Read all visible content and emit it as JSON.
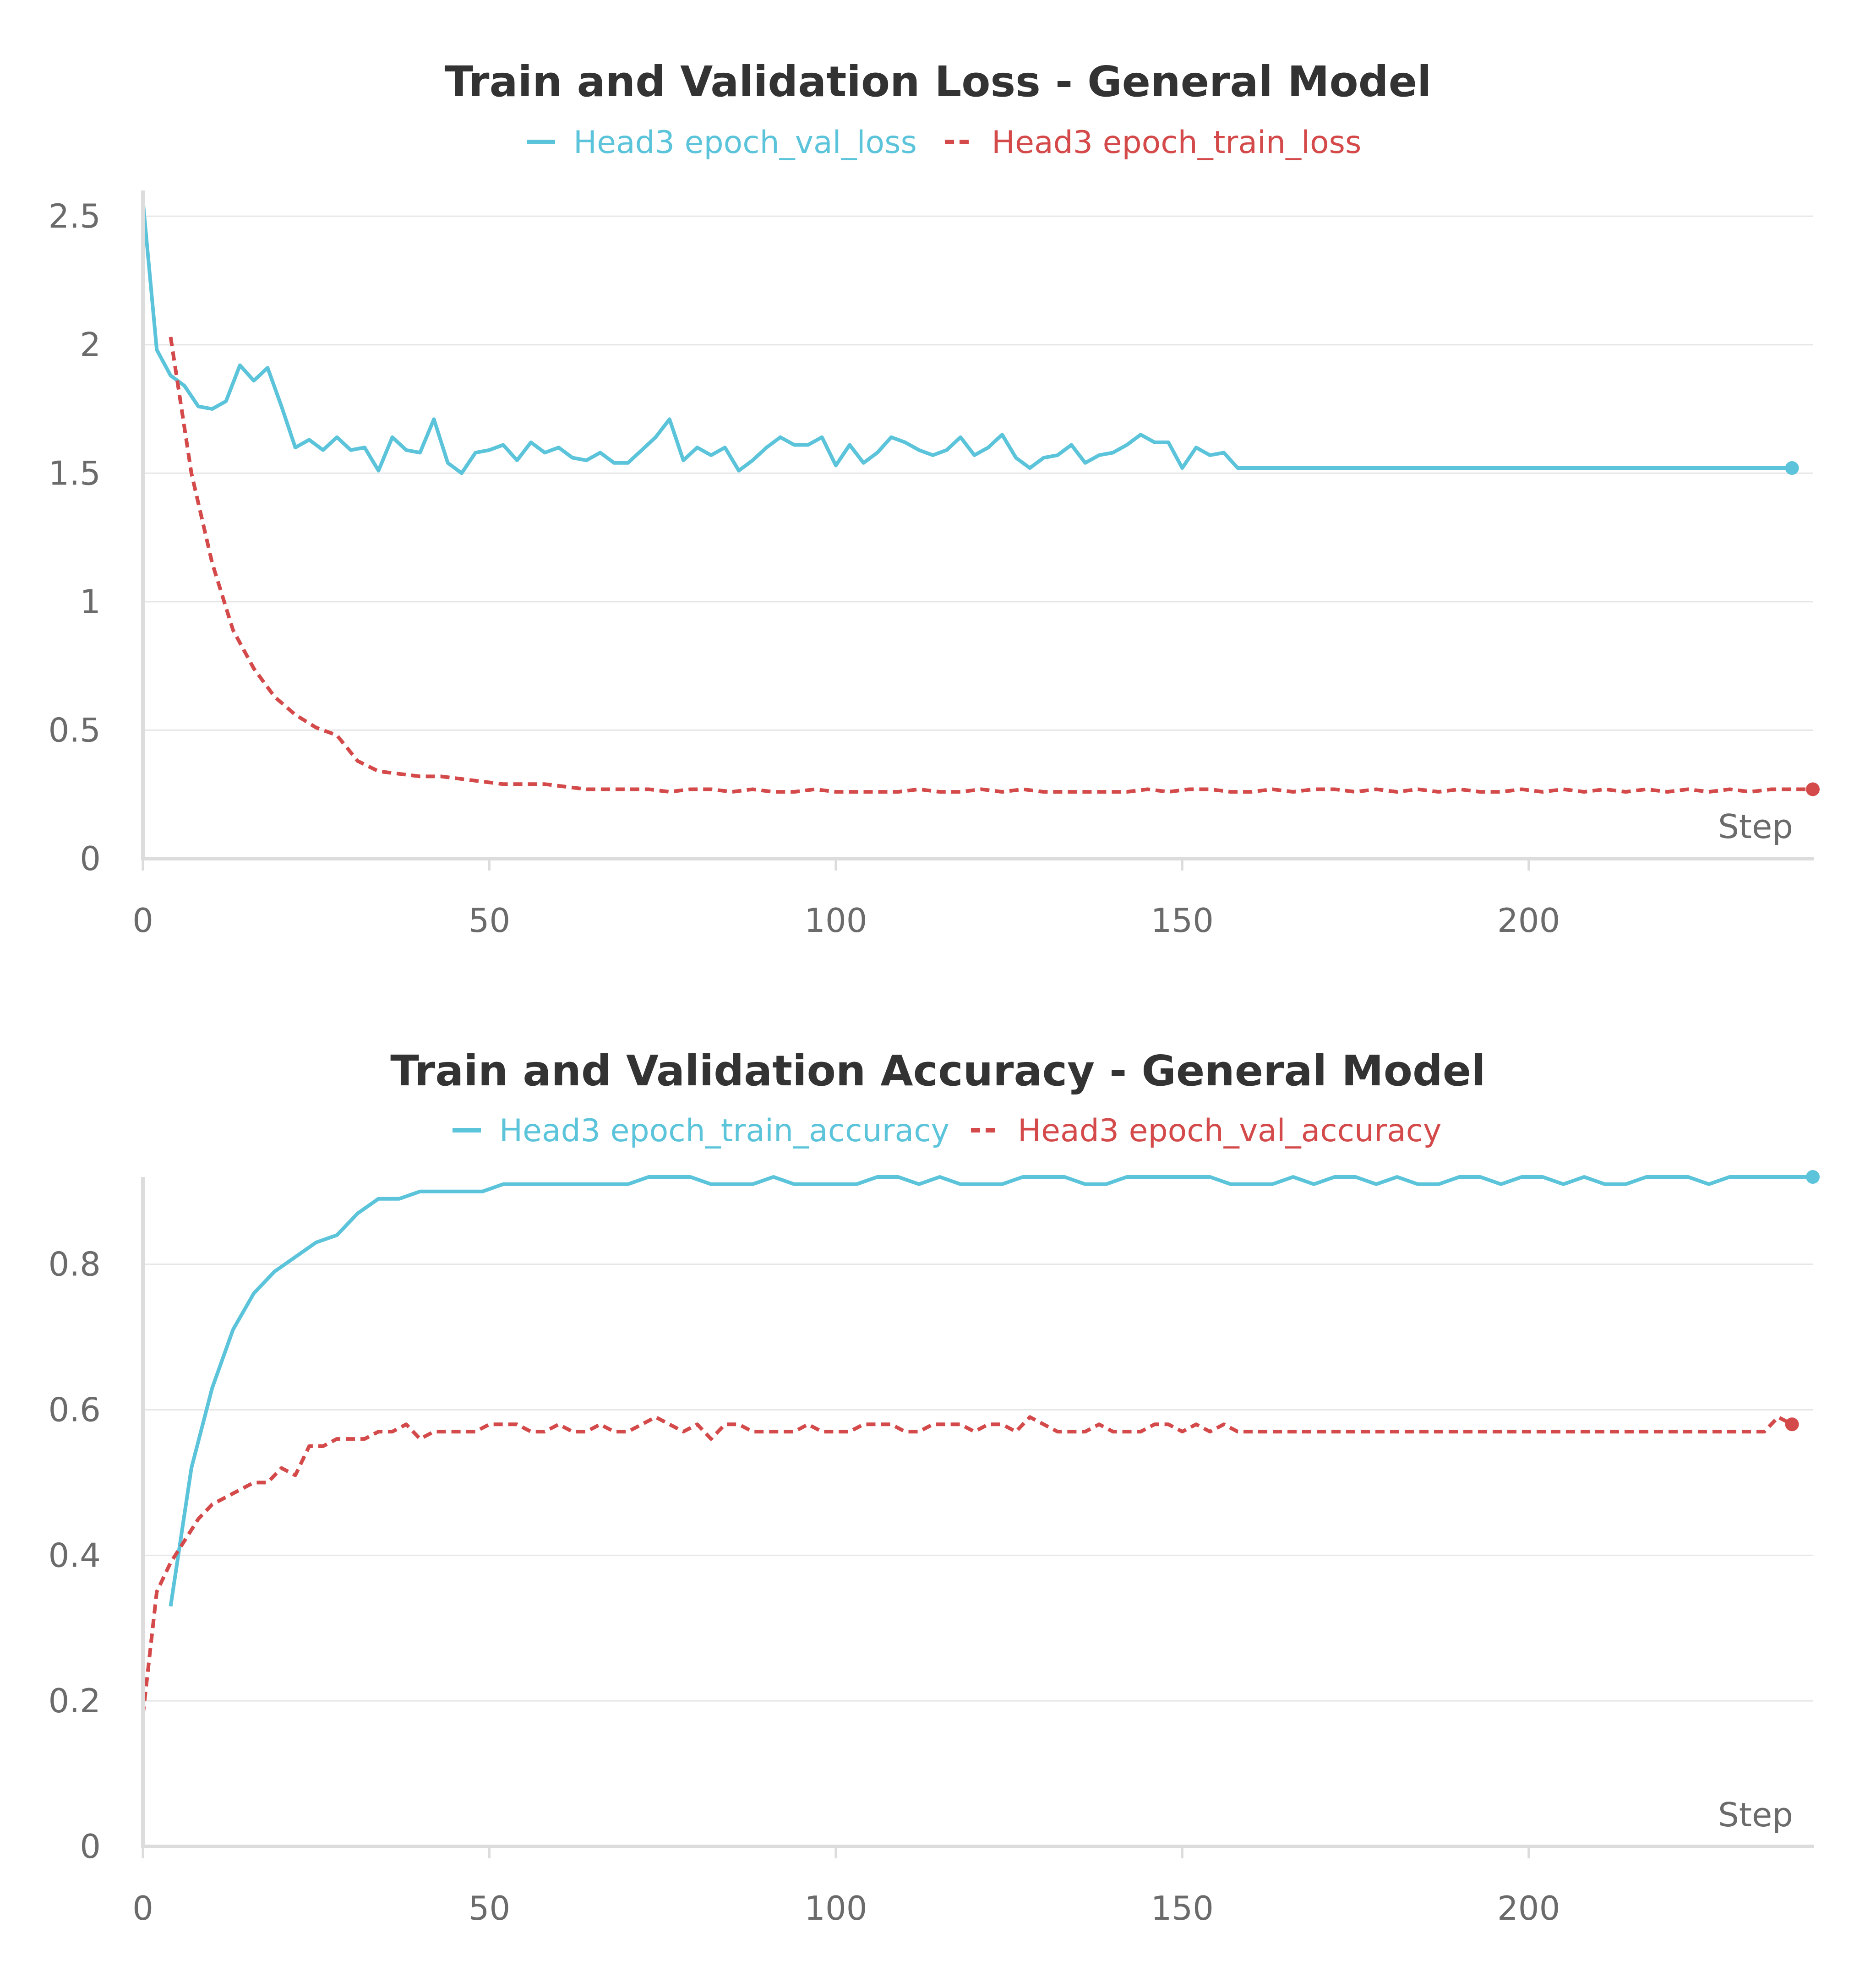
{
  "chart_data": [
    {
      "type": "line",
      "title": "Train and Validation Loss - General Model",
      "xlabel": "Step",
      "ylabel": "",
      "xlim": [
        0,
        241
      ],
      "ylim": [
        0,
        2.6
      ],
      "xticks": [
        0,
        50,
        100,
        150,
        200
      ],
      "xtick_labels": [
        "0",
        "50",
        "100",
        "150",
        "200"
      ],
      "yticks": [
        0,
        0.5,
        1,
        1.5,
        2,
        2.5
      ],
      "ytick_labels": [
        "0",
        "0.5",
        "1",
        "1.5",
        "2",
        "2.5"
      ],
      "grid": true,
      "legend_position": "top-center",
      "series": [
        {
          "name": "Head3 epoch_val_loss",
          "color": "#5bc4da",
          "style": "solid",
          "x": [
            0,
            2,
            4,
            6,
            8,
            10,
            12,
            14,
            16,
            18,
            20,
            22,
            24,
            26,
            28,
            30,
            32,
            34,
            36,
            38,
            40,
            42,
            44,
            46,
            48,
            50,
            52,
            54,
            56,
            58,
            60,
            62,
            64,
            66,
            68,
            70,
            72,
            74,
            76,
            78,
            80,
            82,
            84,
            86,
            88,
            90,
            92,
            94,
            96,
            98,
            100,
            102,
            104,
            106,
            108,
            110,
            112,
            114,
            116,
            118,
            120,
            122,
            124,
            126,
            128,
            130,
            132,
            134,
            136,
            138,
            140,
            142,
            144,
            146,
            148,
            150,
            152,
            154,
            156,
            158,
            160,
            162,
            164,
            166,
            168,
            170,
            172,
            174,
            176,
            178,
            180,
            182,
            184,
            186,
            188,
            190,
            192,
            194,
            196,
            198,
            200,
            202,
            204,
            206,
            208,
            210,
            212,
            214,
            216,
            218,
            220,
            222,
            224,
            226,
            228,
            230,
            232,
            234,
            236,
            238
          ],
          "y": [
            2.56,
            1.98,
            1.88,
            1.84,
            1.76,
            1.75,
            1.78,
            1.92,
            1.86,
            1.91,
            1.76,
            1.6,
            1.63,
            1.59,
            1.64,
            1.59,
            1.6,
            1.51,
            1.64,
            1.59,
            1.58,
            1.71,
            1.54,
            1.5,
            1.58,
            1.59,
            1.61,
            1.55,
            1.62,
            1.58,
            1.6,
            1.56,
            1.55,
            1.58,
            1.54,
            1.54,
            1.59,
            1.64,
            1.71,
            1.55,
            1.6,
            1.57,
            1.6,
            1.51,
            1.55,
            1.6,
            1.64,
            1.61,
            1.61,
            1.64,
            1.53,
            1.61,
            1.54,
            1.58,
            1.64,
            1.62,
            1.59,
            1.57,
            1.59,
            1.64,
            1.57,
            1.6,
            1.65,
            1.56,
            1.52,
            1.56,
            1.57,
            1.61,
            1.54,
            1.57,
            1.58,
            1.61,
            1.65,
            1.62,
            1.62,
            1.52,
            1.6,
            1.57,
            1.58,
            1.52,
            1.52,
            1.52,
            1.52,
            1.52,
            1.52,
            1.52,
            1.52,
            1.52,
            1.52,
            1.52,
            1.52,
            1.52,
            1.52,
            1.52,
            1.52,
            1.52,
            1.52,
            1.52,
            1.52,
            1.52,
            1.52,
            1.52,
            1.52,
            1.52,
            1.52,
            1.52,
            1.52,
            1.52,
            1.52,
            1.52,
            1.52,
            1.52,
            1.52,
            1.52,
            1.52,
            1.52,
            1.52,
            1.52,
            1.52,
            1.52
          ]
        },
        {
          "name": "Head3 epoch_train_loss",
          "color": "#d44a4a",
          "style": "dashed",
          "x": [
            4,
            7,
            10,
            13,
            16,
            19,
            22,
            25,
            28,
            31,
            34,
            37,
            40,
            43,
            46,
            49,
            52,
            55,
            58,
            61,
            64,
            67,
            70,
            73,
            76,
            79,
            82,
            85,
            88,
            91,
            94,
            97,
            100,
            103,
            106,
            109,
            112,
            115,
            118,
            121,
            124,
            127,
            130,
            133,
            136,
            139,
            142,
            145,
            148,
            151,
            154,
            157,
            160,
            163,
            166,
            169,
            172,
            175,
            178,
            181,
            184,
            187,
            190,
            193,
            196,
            199,
            202,
            205,
            208,
            211,
            214,
            217,
            220,
            223,
            226,
            229,
            232,
            235,
            238,
            241
          ],
          "y": [
            2.03,
            1.5,
            1.15,
            0.89,
            0.74,
            0.63,
            0.56,
            0.51,
            0.48,
            0.38,
            0.34,
            0.33,
            0.32,
            0.32,
            0.31,
            0.3,
            0.29,
            0.29,
            0.29,
            0.28,
            0.27,
            0.27,
            0.27,
            0.27,
            0.26,
            0.27,
            0.27,
            0.26,
            0.27,
            0.26,
            0.26,
            0.27,
            0.26,
            0.26,
            0.26,
            0.26,
            0.27,
            0.26,
            0.26,
            0.27,
            0.26,
            0.27,
            0.26,
            0.26,
            0.26,
            0.26,
            0.26,
            0.27,
            0.26,
            0.27,
            0.27,
            0.26,
            0.26,
            0.27,
            0.26,
            0.27,
            0.27,
            0.26,
            0.27,
            0.26,
            0.27,
            0.26,
            0.27,
            0.26,
            0.26,
            0.27,
            0.26,
            0.27,
            0.26,
            0.27,
            0.26,
            0.27,
            0.26,
            0.27,
            0.26,
            0.27,
            0.26,
            0.27,
            0.27,
            0.27
          ]
        }
      ]
    },
    {
      "type": "line",
      "title": "Train and Validation Accuracy - General Model",
      "xlabel": "Step",
      "ylabel": "",
      "xlim": [
        0,
        241
      ],
      "ylim": [
        0,
        0.92
      ],
      "xticks": [
        0,
        50,
        100,
        150,
        200
      ],
      "xtick_labels": [
        "0",
        "50",
        "100",
        "150",
        "200"
      ],
      "yticks": [
        0,
        0.2,
        0.4,
        0.6,
        0.8
      ],
      "ytick_labels": [
        "0",
        "0.2",
        "0.4",
        "0.6",
        "0.8"
      ],
      "grid": true,
      "legend_position": "top-center",
      "series": [
        {
          "name": "Head3 epoch_train_accuracy",
          "color": "#5bc4da",
          "style": "solid",
          "x": [
            4,
            7,
            10,
            13,
            16,
            19,
            22,
            25,
            28,
            31,
            34,
            37,
            40,
            43,
            46,
            49,
            52,
            55,
            58,
            61,
            64,
            67,
            70,
            73,
            76,
            79,
            82,
            85,
            88,
            91,
            94,
            97,
            100,
            103,
            106,
            109,
            112,
            115,
            118,
            121,
            124,
            127,
            130,
            133,
            136,
            139,
            142,
            145,
            148,
            151,
            154,
            157,
            160,
            163,
            166,
            169,
            172,
            175,
            178,
            181,
            184,
            187,
            190,
            193,
            196,
            199,
            202,
            205,
            208,
            211,
            214,
            217,
            220,
            223,
            226,
            229,
            232,
            235,
            238,
            241
          ],
          "y": [
            0.33,
            0.52,
            0.63,
            0.71,
            0.76,
            0.79,
            0.81,
            0.83,
            0.84,
            0.87,
            0.89,
            0.89,
            0.9,
            0.9,
            0.9,
            0.9,
            0.91,
            0.91,
            0.91,
            0.91,
            0.91,
            0.91,
            0.91,
            0.92,
            0.92,
            0.92,
            0.91,
            0.91,
            0.91,
            0.92,
            0.91,
            0.91,
            0.91,
            0.91,
            0.92,
            0.92,
            0.91,
            0.92,
            0.91,
            0.91,
            0.91,
            0.92,
            0.92,
            0.92,
            0.91,
            0.91,
            0.92,
            0.92,
            0.92,
            0.92,
            0.92,
            0.91,
            0.91,
            0.91,
            0.92,
            0.91,
            0.92,
            0.92,
            0.91,
            0.92,
            0.91,
            0.91,
            0.92,
            0.92,
            0.91,
            0.92,
            0.92,
            0.91,
            0.92,
            0.91,
            0.91,
            0.92,
            0.92,
            0.92,
            0.91,
            0.92,
            0.92,
            0.92,
            0.92,
            0.92
          ]
        },
        {
          "name": "Head3 epoch_val_accuracy",
          "color": "#d44a4a",
          "style": "dashed",
          "x": [
            0,
            2,
            4,
            6,
            8,
            10,
            12,
            14,
            16,
            18,
            20,
            22,
            24,
            26,
            28,
            30,
            32,
            34,
            36,
            38,
            40,
            42,
            44,
            46,
            48,
            50,
            52,
            54,
            56,
            58,
            60,
            62,
            64,
            66,
            68,
            70,
            72,
            74,
            76,
            78,
            80,
            82,
            84,
            86,
            88,
            90,
            92,
            94,
            96,
            98,
            100,
            102,
            104,
            106,
            108,
            110,
            112,
            114,
            116,
            118,
            120,
            122,
            124,
            126,
            128,
            130,
            132,
            134,
            136,
            138,
            140,
            142,
            144,
            146,
            148,
            150,
            152,
            154,
            156,
            158,
            160,
            162,
            164,
            166,
            168,
            170,
            172,
            174,
            176,
            178,
            180,
            182,
            184,
            186,
            188,
            190,
            192,
            194,
            196,
            198,
            200,
            202,
            204,
            206,
            208,
            210,
            212,
            214,
            216,
            218,
            220,
            222,
            224,
            226,
            228,
            230,
            232,
            234,
            236,
            238
          ],
          "y": [
            0.18,
            0.35,
            0.39,
            0.42,
            0.45,
            0.47,
            0.48,
            0.49,
            0.5,
            0.5,
            0.52,
            0.51,
            0.55,
            0.55,
            0.56,
            0.56,
            0.56,
            0.57,
            0.57,
            0.58,
            0.56,
            0.57,
            0.57,
            0.57,
            0.57,
            0.58,
            0.58,
            0.58,
            0.57,
            0.57,
            0.58,
            0.57,
            0.57,
            0.58,
            0.57,
            0.57,
            0.58,
            0.59,
            0.58,
            0.57,
            0.58,
            0.56,
            0.58,
            0.58,
            0.57,
            0.57,
            0.57,
            0.57,
            0.58,
            0.57,
            0.57,
            0.57,
            0.58,
            0.58,
            0.58,
            0.57,
            0.57,
            0.58,
            0.58,
            0.58,
            0.57,
            0.58,
            0.58,
            0.57,
            0.59,
            0.58,
            0.57,
            0.57,
            0.57,
            0.58,
            0.57,
            0.57,
            0.57,
            0.58,
            0.58,
            0.57,
            0.58,
            0.57,
            0.58,
            0.57,
            0.57,
            0.57,
            0.57,
            0.57,
            0.57,
            0.57,
            0.57,
            0.57,
            0.57,
            0.57,
            0.57,
            0.57,
            0.57,
            0.57,
            0.57,
            0.57,
            0.57,
            0.57,
            0.57,
            0.57,
            0.57,
            0.57,
            0.57,
            0.57,
            0.57,
            0.57,
            0.57,
            0.57,
            0.57,
            0.57,
            0.57,
            0.57,
            0.57,
            0.57,
            0.57,
            0.57,
            0.57,
            0.57,
            0.59,
            0.58
          ]
        }
      ]
    }
  ]
}
